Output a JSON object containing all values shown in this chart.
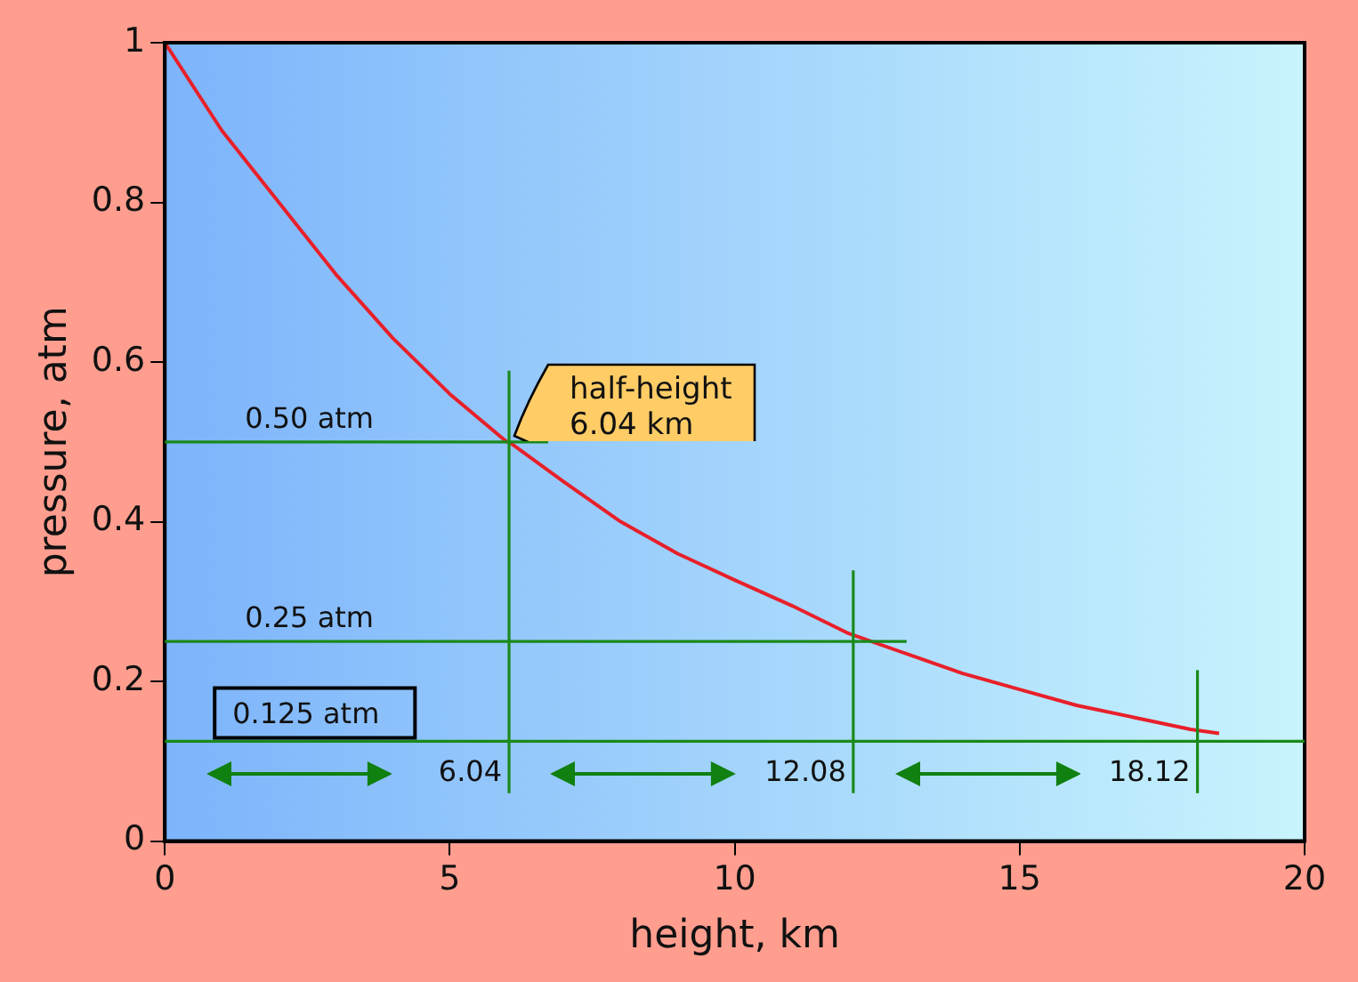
{
  "chart_data": {
    "type": "line",
    "xlabel": "height, km",
    "ylabel": "pressure, atm",
    "xlim": [
      0,
      20
    ],
    "ylim": [
      0,
      1
    ],
    "xticks": [
      0,
      5,
      10,
      15,
      20
    ],
    "yticks": [
      0,
      0.2,
      0.4,
      0.6,
      0.8,
      1
    ],
    "grid": false,
    "legend": false,
    "marker": "none",
    "line_style": "solid",
    "series": [
      {
        "color": "#e8202a",
        "x": [
          0,
          1,
          2,
          3,
          4,
          5,
          6,
          6.04,
          7,
          8,
          9,
          10,
          11,
          12,
          13,
          14,
          15,
          16,
          17,
          18,
          18.5
        ],
        "values": [
          1,
          0.89,
          0.8,
          0.71,
          0.63,
          0.56,
          0.5,
          0.5,
          0.45,
          0.4,
          0.36,
          0.327,
          0.295,
          0.26,
          0.235,
          0.21,
          0.19,
          0.17,
          0.155,
          0.14,
          0.135
        ]
      }
    ],
    "ref_lines": [
      {
        "axis": "y",
        "value": 0.5,
        "label": "0.50 atm",
        "color": "#1a8a1a"
      },
      {
        "axis": "y",
        "value": 0.25,
        "label": "0.25 atm",
        "color": "#1a8a1a"
      },
      {
        "axis": "y",
        "value": 0.125,
        "label": "0.125 atm",
        "color": "#1a8a1a"
      },
      {
        "axis": "x",
        "value": 6.04,
        "label": "6.04",
        "color": "#1a8a1a"
      },
      {
        "axis": "x",
        "value": 12.08,
        "label": "12.08",
        "color": "#1a8a1a"
      },
      {
        "axis": "x",
        "value": 18.12,
        "label": "18.12",
        "color": "#1a8a1a"
      }
    ],
    "annotations": [
      {
        "text": "half-height\n6.04 km",
        "x": 6.04,
        "y": 0.5
      }
    ]
  }
}
